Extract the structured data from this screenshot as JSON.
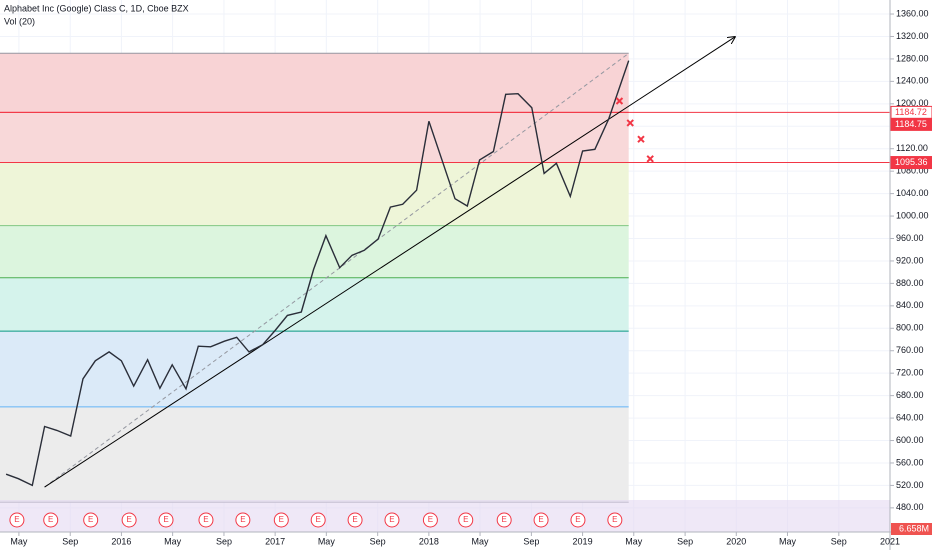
{
  "chart_data": {
    "type": "line",
    "title": "Alphabet Inc (Google) Class C, 1D, Cboe BZX",
    "subtitle": "Vol (20)",
    "volume_label": "6.658M",
    "color": "#2a2e39",
    "x": [
      2015.25,
      2015.33,
      2015.42,
      2015.5,
      2015.58,
      2015.67,
      2015.75,
      2015.83,
      2015.92,
      2016,
      2016.08,
      2016.17,
      2016.25,
      2016.33,
      2016.42,
      2016.5,
      2016.58,
      2016.67,
      2016.75,
      2016.83,
      2016.92,
      2017,
      2017.08,
      2017.17,
      2017.25,
      2017.33,
      2017.42,
      2017.5,
      2017.58,
      2017.67,
      2017.75,
      2017.83,
      2017.92,
      2018,
      2018.08,
      2018.17,
      2018.25,
      2018.33,
      2018.42,
      2018.5,
      2018.58,
      2018.67,
      2018.75,
      2018.83,
      2018.92,
      2019,
      2019.08,
      2019.17,
      2019.3
    ],
    "values": [
      540,
      532,
      520,
      625,
      618,
      608,
      710,
      742,
      758,
      742,
      697,
      744,
      693,
      735,
      692,
      768,
      767,
      777,
      784,
      758,
      771,
      796,
      823,
      829,
      905,
      965,
      908,
      930,
      939,
      959,
      1016,
      1021,
      1046,
      1169,
      1104,
      1031,
      1018,
      1100,
      1115,
      1217,
      1218,
      1193,
      1076,
      1094,
      1035,
      1116,
      1119,
      1173,
      1277
    ],
    "xlim": [
      2015.21,
      2021.0
    ],
    "ylim": [
      437,
      1385
    ],
    "xticks": [
      {
        "value": 2015.333,
        "label": "May"
      },
      {
        "value": 2015.667,
        "label": "Sep"
      },
      2016,
      {
        "value": 2016.333,
        "label": "May"
      },
      {
        "value": 2016.667,
        "label": "Sep"
      },
      2017,
      {
        "value": 2017.333,
        "label": "May"
      },
      {
        "value": 2017.667,
        "label": "Sep"
      },
      2018,
      {
        "value": 2018.333,
        "label": "May"
      },
      {
        "value": 2018.667,
        "label": "Sep"
      },
      2019,
      {
        "value": 2019.333,
        "label": "May"
      },
      {
        "value": 2019.667,
        "label": "Sep"
      },
      2020,
      {
        "value": 2020.333,
        "label": "May"
      },
      {
        "value": 2020.667,
        "label": "Sep"
      },
      2021
    ],
    "yticks": [
      {
        "value": 480,
        "label": "480.00"
      },
      {
        "value": 520,
        "label": "520.00"
      },
      {
        "value": 560,
        "label": "560.00"
      },
      {
        "value": 600,
        "label": "600.00"
      },
      {
        "value": 640,
        "label": "640.00"
      },
      {
        "value": 680,
        "label": "680.00"
      },
      {
        "value": 720,
        "label": "720.00"
      },
      {
        "value": 760,
        "label": "760.00"
      },
      {
        "value": 800,
        "label": "800.00"
      },
      {
        "value": 840,
        "label": "840.00"
      },
      {
        "value": 880,
        "label": "880.00"
      },
      {
        "value": 920,
        "label": "920.00"
      },
      {
        "value": 960,
        "label": "960.00"
      },
      {
        "value": 1000,
        "label": "1000.00"
      },
      {
        "value": 1040,
        "label": "1040.00"
      },
      {
        "value": 1080,
        "label": "1080.00"
      },
      {
        "value": 1120,
        "label": "1120.00"
      },
      {
        "value": 1160,
        "label": "1160.00"
      },
      {
        "value": 1200,
        "label": "1200.00"
      },
      {
        "value": 1240,
        "label": "1240.00"
      },
      {
        "value": 1280,
        "label": "1280.00"
      },
      {
        "value": 1320,
        "label": "1320.00"
      },
      {
        "value": 1360,
        "label": "1360.00"
      }
    ],
    "grid": true,
    "fib": {
      "x_end": 2019.3,
      "levels": [
        1290,
        1184.72,
        1095.36,
        983,
        890,
        795,
        660,
        490
      ],
      "line_colors": [
        "#9598a1",
        "#f23645",
        "#f23645",
        "#81c784",
        "#4caf50",
        "#089981",
        "#64b5f6",
        "#9598a1"
      ],
      "band_colors": [
        "#f8d3d5",
        "#f8d8d9",
        "#eef5d8",
        "#dcf5de",
        "#d5f3ec",
        "#dbeaf8",
        "#ececec"
      ]
    },
    "price_lines": {
      "values": [
        1184.72,
        1095.36
      ],
      "color": "#f23645"
    },
    "price_labels": [
      1184.72,
      1184.75,
      1095.36
    ],
    "trendline": {
      "x": [
        2015.5,
        2019.99
      ],
      "y": [
        517,
        1319
      ],
      "color": "#000000"
    },
    "fib_trendline": {
      "x": [
        2015.5,
        2019.3
      ],
      "y": [
        517,
        1290
      ],
      "color": "#9598a1"
    },
    "markers": {
      "x": [
        2019.24,
        2019.31,
        2019.38,
        2019.44
      ],
      "y": [
        1205,
        1166,
        1137,
        1102
      ],
      "color": "#f23645"
    },
    "earnings_label": "E",
    "earnings": [
      2015.32,
      2015.54,
      2015.8,
      2016.05,
      2016.29,
      2016.55,
      2016.79,
      2017.04,
      2017.28,
      2017.52,
      2017.76,
      2018.01,
      2018.24,
      2018.49,
      2018.73,
      2018.97,
      2019.21
    ]
  }
}
